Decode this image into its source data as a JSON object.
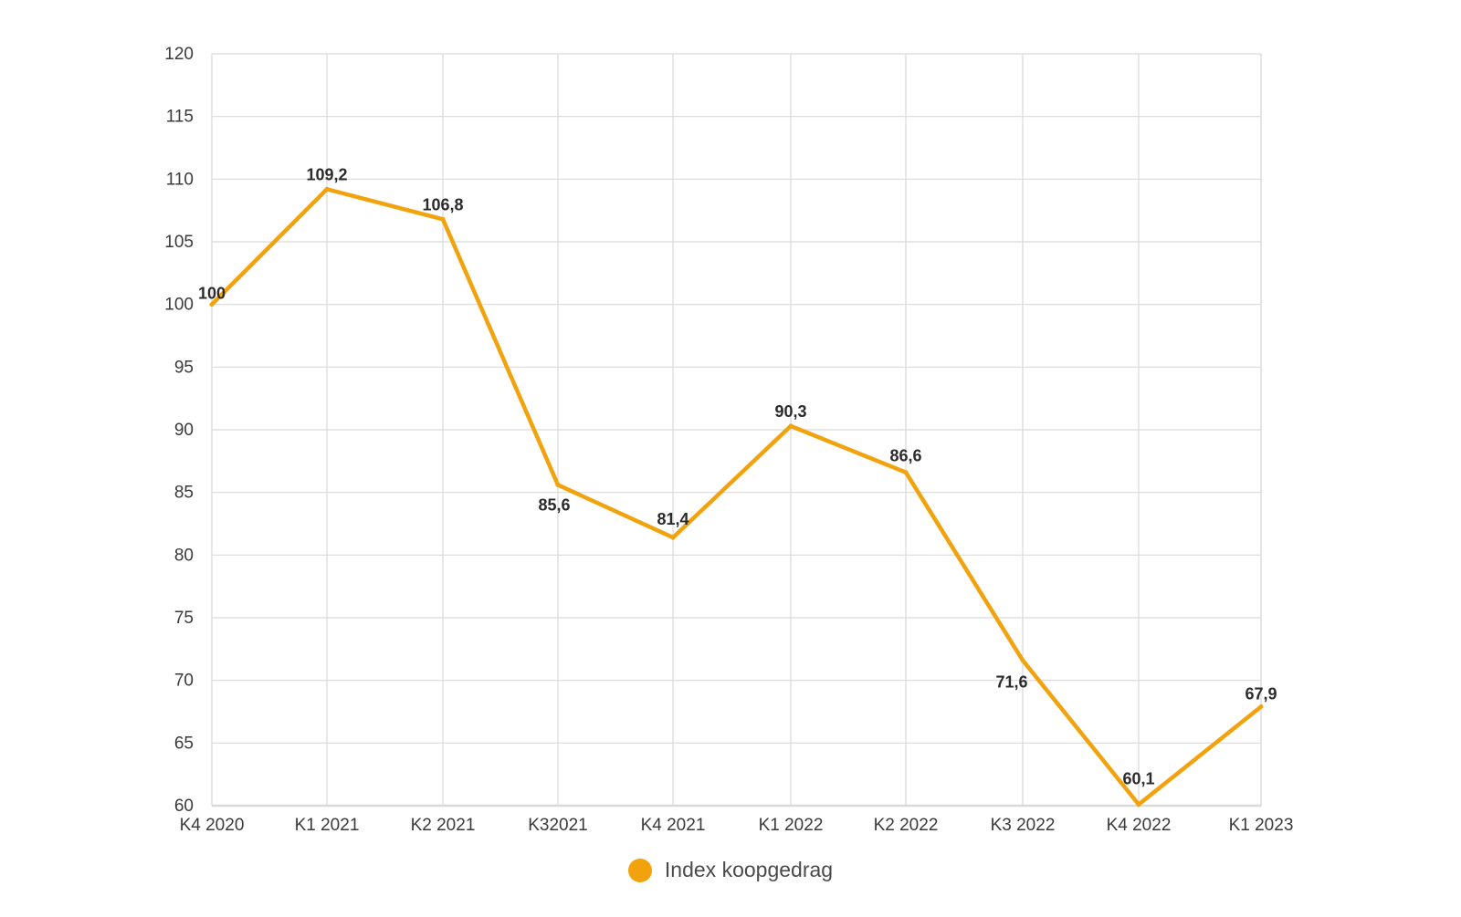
{
  "chart_data": {
    "type": "line",
    "categories": [
      "K4 2020",
      "K1 2021",
      "K2 2021",
      "K32021",
      "K4 2021",
      "K1 2022",
      "K2 2022",
      "K3 2022",
      "K4 2022",
      "K1 2023"
    ],
    "series": [
      {
        "name": "Index koopgedrag",
        "values": [
          100,
          109.2,
          106.8,
          85.6,
          81.4,
          90.3,
          86.6,
          71.6,
          60.1,
          67.9
        ],
        "labels": [
          "100",
          "109,2",
          "106,8",
          "85,6",
          "81,4",
          "90,3",
          "86,6",
          "71,6",
          "60,1",
          "67,9"
        ],
        "color": "#f2a20c"
      }
    ],
    "y_ticks": [
      "60",
      "65",
      "70",
      "75",
      "80",
      "85",
      "90",
      "95",
      "100",
      "105",
      "110",
      "115",
      "120"
    ],
    "ylim": [
      60,
      120
    ],
    "grid": true,
    "legend_position": "bottom"
  },
  "colors": {
    "line": "#f2a20c",
    "grid": "#d9d9d9",
    "axis_text": "#3a3a3a",
    "data_label": "#2b2b2b"
  }
}
